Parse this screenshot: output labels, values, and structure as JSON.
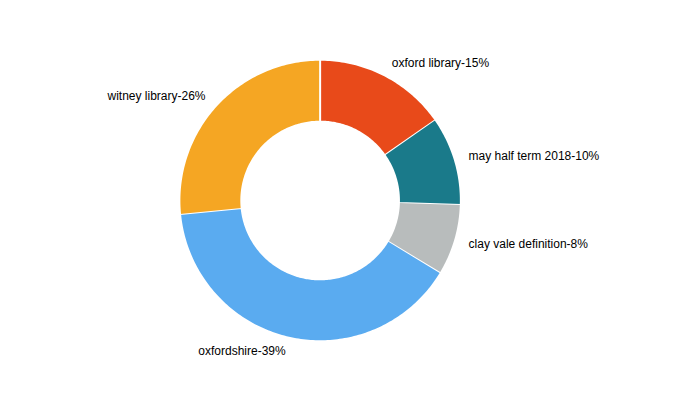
{
  "chart_data": {
    "type": "donut",
    "categories": [
      "oxford library-15%",
      "may half term 2018-10%",
      "clay vale definition-8%",
      "oxfordshire-39%",
      "witney library-26%"
    ],
    "values": [
      15,
      10,
      8,
      39,
      26
    ],
    "colors": [
      "#e84a1a",
      "#1a7a8a",
      "#b8bcbc",
      "#5aabf0",
      "#f5a623"
    ]
  }
}
